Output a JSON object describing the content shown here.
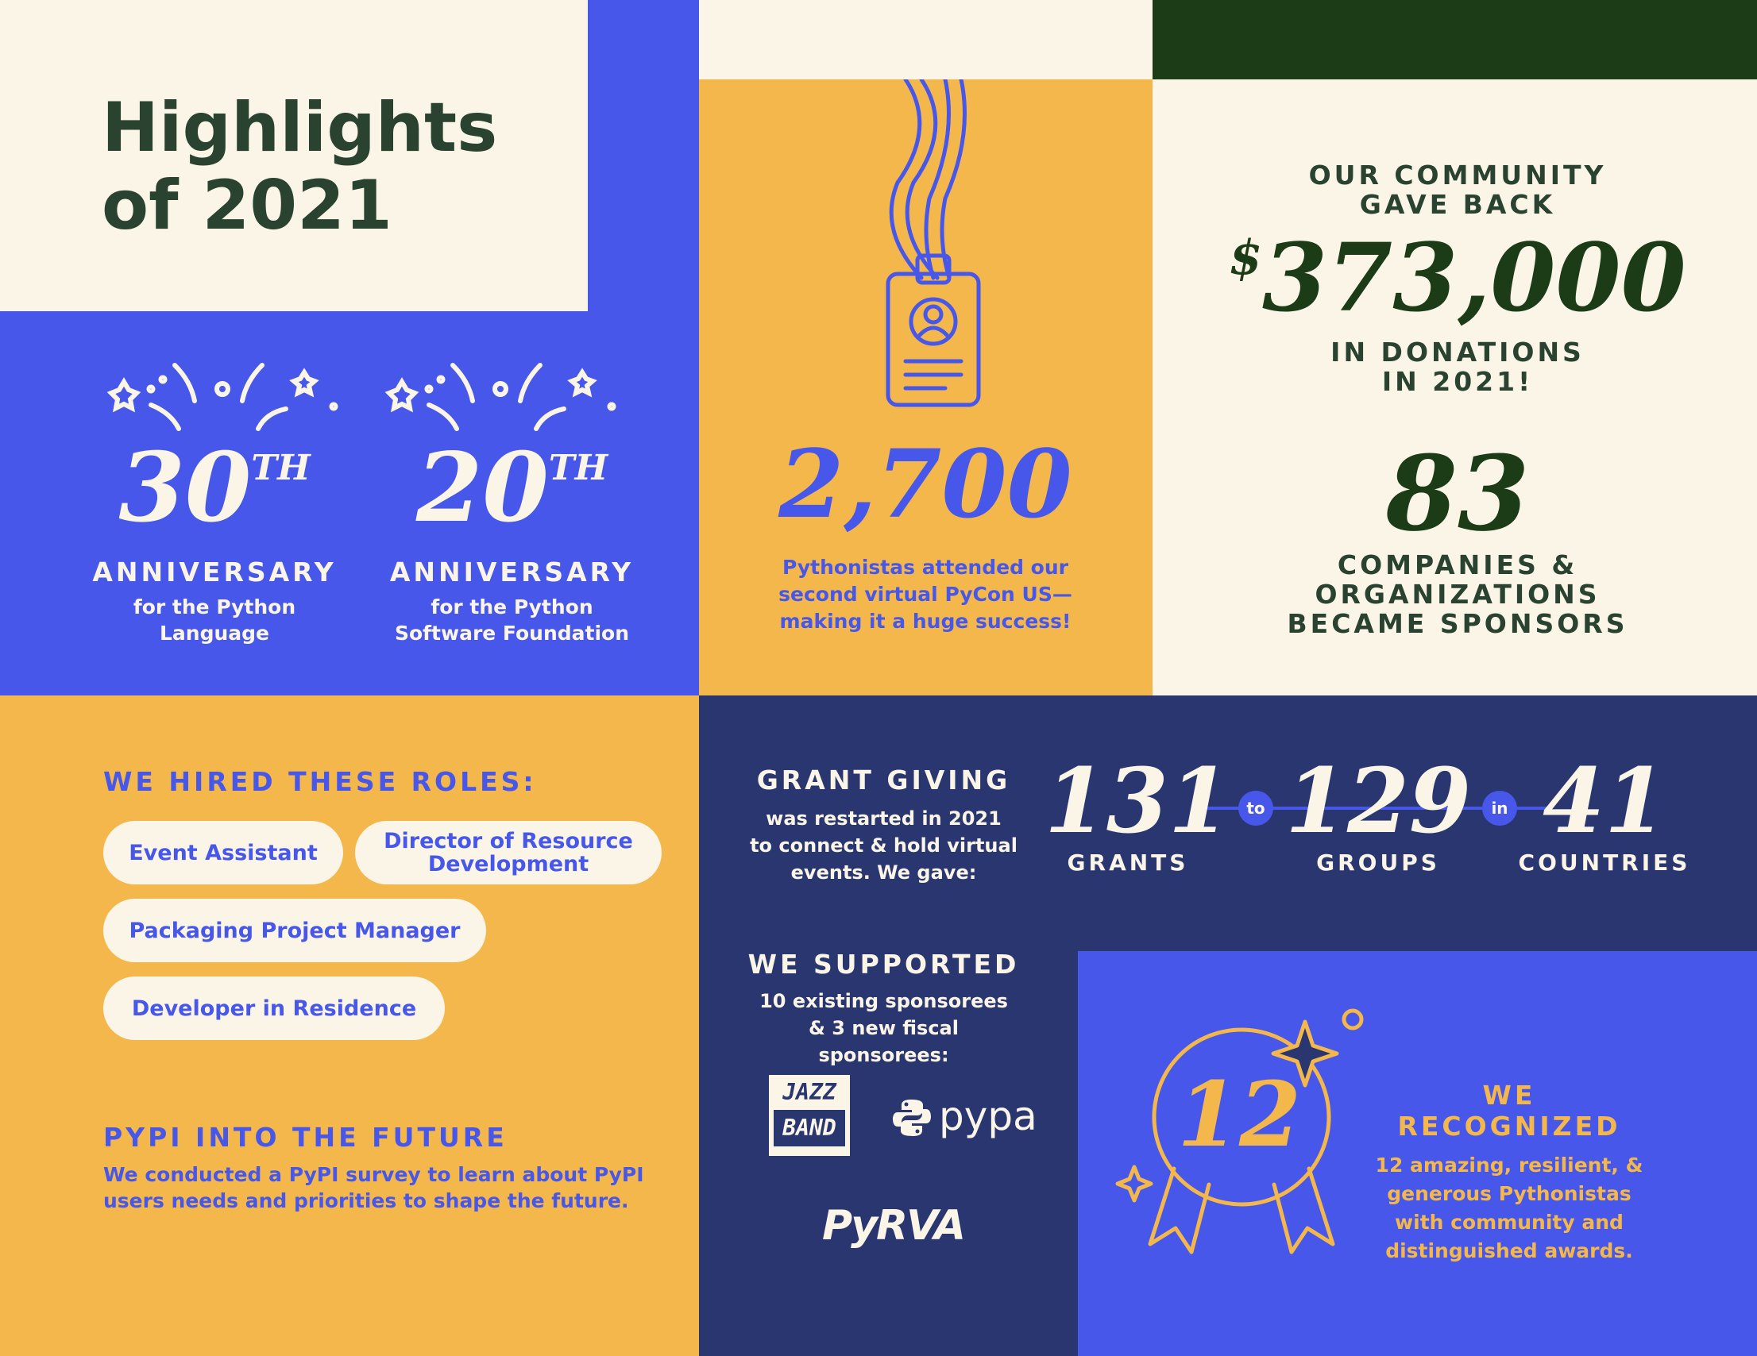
{
  "title": {
    "line1": "Highlights",
    "line2": "of 2021"
  },
  "anniversaries": [
    {
      "number": "30",
      "suffix": "TH",
      "label": "ANNIVERSARY",
      "desc1": "for the Python",
      "desc2": "Language"
    },
    {
      "number": "20",
      "suffix": "TH",
      "label": "ANNIVERSARY",
      "desc1": "for the Python",
      "desc2": "Software Foundation"
    }
  ],
  "pycon": {
    "number": "2,700",
    "desc1": "Pythonistas attended our",
    "desc2": "second virtual PyCon US—",
    "desc3": "making it a huge success!"
  },
  "donations": {
    "intro1": "OUR COMMUNITY",
    "intro2": "GAVE BACK",
    "currency": "$",
    "amount": "373,000",
    "outro1": "IN DONATIONS",
    "outro2": "IN 2021!"
  },
  "sponsors": {
    "number": "83",
    "line1": "COMPANIES &",
    "line2": "ORGANIZATIONS",
    "line3": "BECAME SPONSORS"
  },
  "hiring": {
    "heading": "WE HIRED THESE ROLES:",
    "roles": [
      "Event Assistant",
      "Director of Resource Development",
      "Packaging Project Manager",
      "Developer in Residence"
    ]
  },
  "pypi": {
    "heading": "PYPI INTO THE FUTURE",
    "desc1": "We conducted a PyPI survey to learn about PyPI",
    "desc2": "users needs and priorities to shape the future."
  },
  "grants": {
    "heading": "GRANT GIVING",
    "desc1": "was restarted in 2021",
    "desc2": "to connect & hold virtual",
    "desc3": "events. We gave:",
    "stats": [
      {
        "number": "131",
        "label": "GRANTS"
      },
      {
        "number": "129",
        "label": "GROUPS"
      },
      {
        "number": "41",
        "label": "COUNTRIES"
      }
    ],
    "connectors": [
      "to",
      "in"
    ]
  },
  "supported": {
    "heading": "WE SUPPORTED",
    "desc1": "10 existing sponsorees",
    "desc2": "& 3 new fiscal sponsorees:",
    "logos": {
      "jazzband_1": "JAZZ",
      "jazzband_2": "BAND",
      "pypa": "pypa",
      "pyrva": "PyRVA"
    }
  },
  "recognized": {
    "number": "12",
    "heading": "WE RECOGNIZED",
    "desc1": "12 amazing, resilient, &",
    "desc2": "generous Pythonistas",
    "desc3": "with community and",
    "desc4": "distinguished awards."
  },
  "colors": {
    "cream": "#faf5e6",
    "blue": "#4657e9",
    "amber": "#f3b74c",
    "navy": "#2a3670",
    "dark_green": "#1c3b17",
    "title_green": "#2a4230"
  }
}
